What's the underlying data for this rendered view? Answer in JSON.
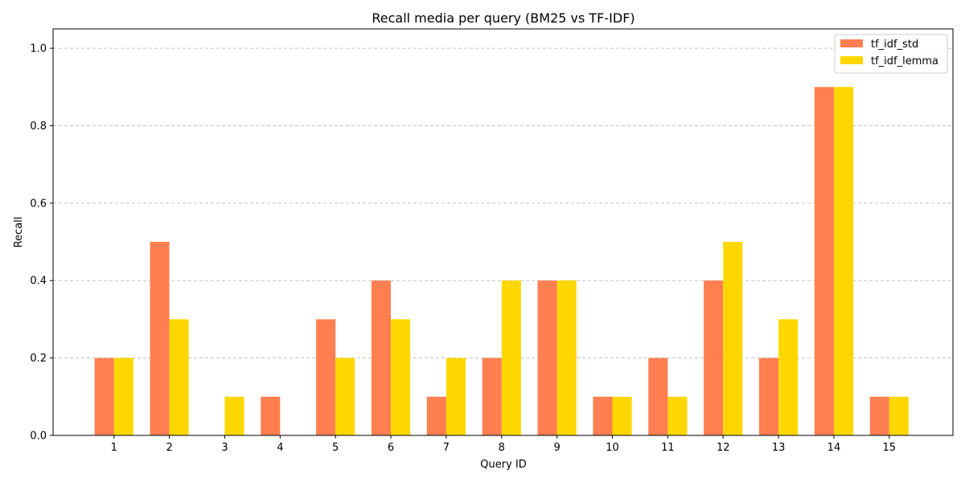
{
  "chart_data": {
    "type": "bar",
    "title": "Recall media per query (BM25 vs TF-IDF)",
    "xlabel": "Query ID",
    "ylabel": "Recall",
    "categories": [
      "1",
      "2",
      "3",
      "4",
      "5",
      "6",
      "7",
      "8",
      "9",
      "10",
      "11",
      "12",
      "13",
      "14",
      "15"
    ],
    "series": [
      {
        "name": "tf_idf_std",
        "color": "#ff7f50",
        "values": [
          0.2,
          0.5,
          0.0,
          0.1,
          0.3,
          0.4,
          0.1,
          0.2,
          0.4,
          0.1,
          0.2,
          0.4,
          0.2,
          0.9,
          0.1
        ]
      },
      {
        "name": "tf_idf_lemma",
        "color": "#ffd700",
        "values": [
          0.2,
          0.3,
          0.1,
          0.0,
          0.2,
          0.3,
          0.2,
          0.4,
          0.4,
          0.1,
          0.1,
          0.5,
          0.3,
          0.9,
          0.1
        ]
      }
    ],
    "ylim": [
      0,
      1.05
    ],
    "yticks": [
      "0.0",
      "0.2",
      "0.4",
      "0.6",
      "0.8",
      "1.0"
    ],
    "grid": "y-dashed",
    "legend_position": "top-right"
  }
}
